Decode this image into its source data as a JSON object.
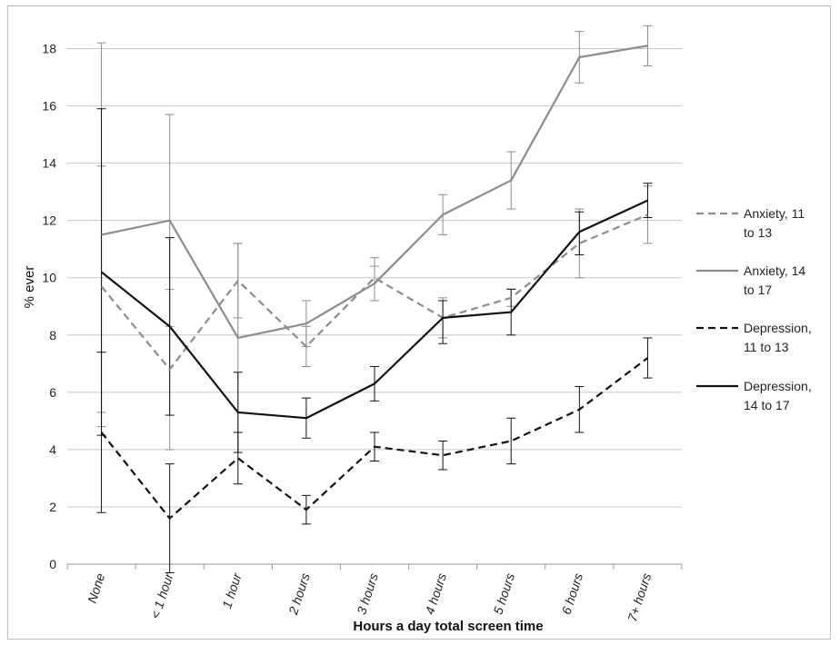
{
  "chart_data": {
    "type": "line",
    "title": "",
    "xlabel": "Hours a day total screen time",
    "ylabel": "% ever",
    "categories": [
      "None",
      "< 1 hour",
      "1 hour",
      "2 hours",
      "3 hours",
      "4 hours",
      "5 hours",
      "6 hours",
      "7+ hours"
    ],
    "ylim": [
      0,
      19
    ],
    "yticks": [
      "0",
      "2",
      "4",
      "6",
      "8",
      "10",
      "12",
      "14",
      "16",
      "18"
    ],
    "grid": "horizontal",
    "legend_position": "right",
    "series": [
      {
        "name": "Anxiety, 11 to 13",
        "legend_lines": [
          "Anxiety, 11",
          "to 13"
        ],
        "color": "#8c8c8c",
        "dash": "dashed",
        "values": [
          9.7,
          6.8,
          9.9,
          7.6,
          10.0,
          8.6,
          9.3,
          11.2,
          12.2
        ],
        "err_low": [
          5.3,
          4.0,
          8.6,
          6.9,
          9.2,
          7.9,
          9.0,
          10.0,
          11.2
        ],
        "err_high": [
          13.9,
          9.6,
          11.2,
          8.3,
          10.7,
          9.3,
          9.6,
          12.4,
          13.2
        ]
      },
      {
        "name": "Anxiety, 14 to 17",
        "legend_lines": [
          "Anxiety, 14",
          "to 17"
        ],
        "color": "#8c8c8c",
        "dash": "solid",
        "values": [
          11.5,
          12.0,
          7.9,
          8.4,
          9.8,
          12.2,
          13.4,
          17.7,
          18.1
        ],
        "err_low": [
          4.8,
          8.3,
          4.6,
          7.6,
          9.2,
          11.5,
          12.4,
          16.8,
          17.4
        ],
        "err_high": [
          18.2,
          15.7,
          11.2,
          9.2,
          10.4,
          12.9,
          14.4,
          18.6,
          18.8
        ]
      },
      {
        "name": "Depression, 11 to 13",
        "legend_lines": [
          "Depression,",
          "11 to 13"
        ],
        "color": "#111111",
        "dash": "dashed",
        "values": [
          4.6,
          1.6,
          3.7,
          1.9,
          4.1,
          3.8,
          4.3,
          5.4,
          7.2
        ],
        "err_low": [
          1.8,
          -0.3,
          2.8,
          1.4,
          3.6,
          3.3,
          3.5,
          4.6,
          6.5
        ],
        "err_high": [
          7.4,
          3.5,
          4.6,
          2.4,
          4.6,
          4.3,
          5.1,
          6.2,
          7.9
        ]
      },
      {
        "name": "Depression, 14 to 17",
        "legend_lines": [
          "Depression,",
          "14 to 17"
        ],
        "color": "#111111",
        "dash": "solid",
        "values": [
          10.2,
          8.3,
          5.3,
          5.1,
          6.3,
          8.6,
          8.8,
          11.6,
          12.7
        ],
        "err_low": [
          4.5,
          5.2,
          3.9,
          4.4,
          5.7,
          7.7,
          8.0,
          10.8,
          12.1
        ],
        "err_high": [
          15.9,
          11.4,
          6.7,
          5.8,
          6.9,
          9.2,
          9.6,
          12.3,
          13.3
        ]
      }
    ]
  }
}
